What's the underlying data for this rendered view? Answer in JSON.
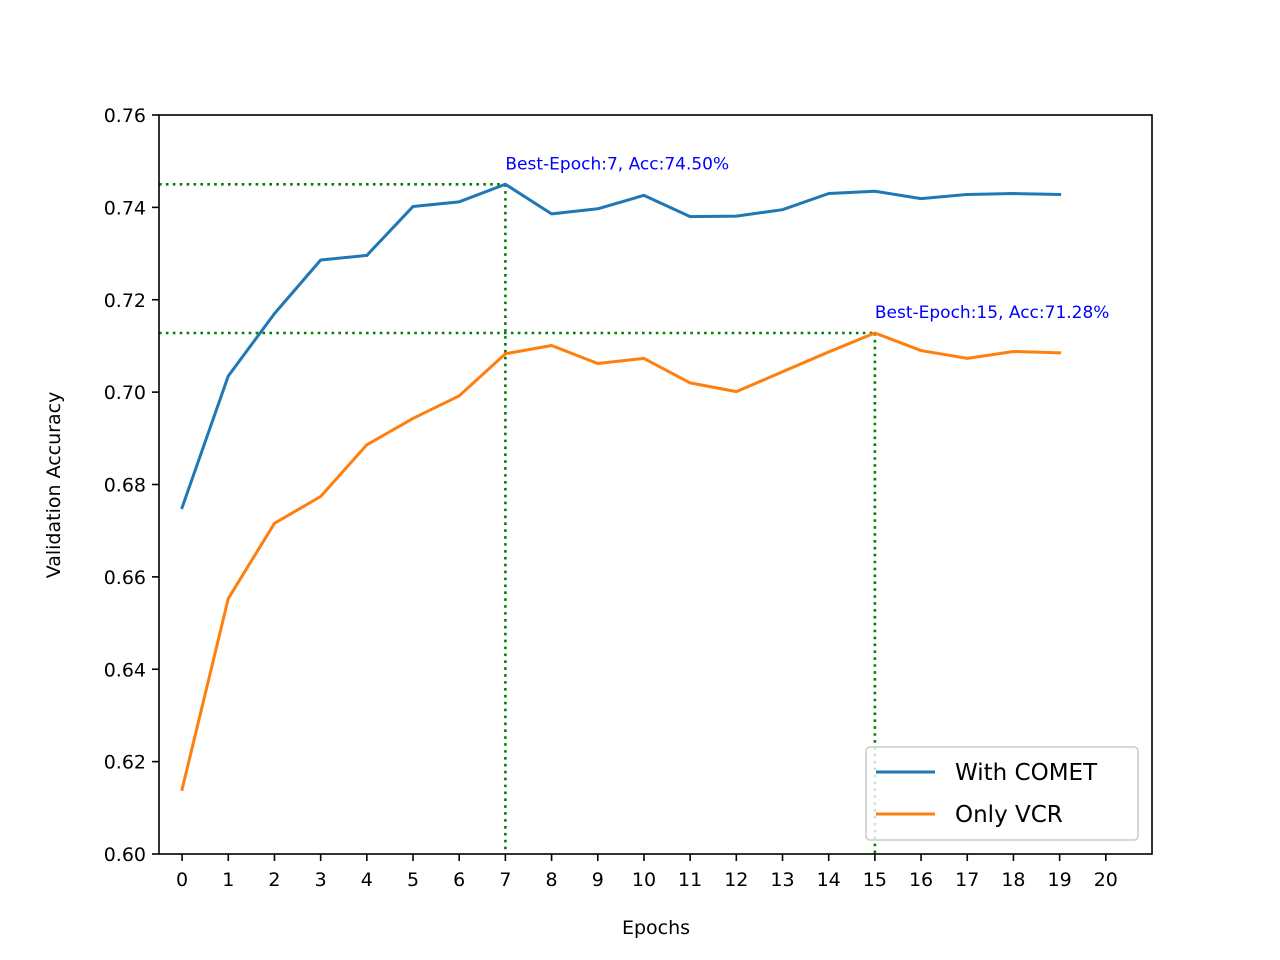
{
  "chart_data": {
    "type": "line",
    "xlabel": "Epochs",
    "ylabel": "Validation Accuracy",
    "xlim": [
      -0.5,
      21
    ],
    "ylim": [
      0.6,
      0.76
    ],
    "xticks": [
      0,
      1,
      2,
      3,
      4,
      5,
      6,
      7,
      8,
      9,
      10,
      11,
      12,
      13,
      14,
      15,
      16,
      17,
      18,
      19,
      20
    ],
    "yticks": [
      0.6,
      0.62,
      0.64,
      0.66,
      0.68,
      0.7,
      0.72,
      0.74,
      0.76
    ],
    "ytick_labels": [
      "0.60",
      "0.62",
      "0.64",
      "0.66",
      "0.68",
      "0.70",
      "0.72",
      "0.74",
      "0.76"
    ],
    "grid": false,
    "legend_position": "bottom-right",
    "x": [
      0,
      1,
      2,
      3,
      4,
      5,
      6,
      7,
      8,
      9,
      10,
      11,
      12,
      13,
      14,
      15,
      16,
      17,
      18,
      19
    ],
    "series": [
      {
        "name": "With COMET",
        "color": "#1f77b4",
        "values": [
          0.675,
          0.7035,
          0.717,
          0.7286,
          0.7296,
          0.7402,
          0.7412,
          0.745,
          0.7386,
          0.7397,
          0.7426,
          0.738,
          0.7381,
          0.7395,
          0.743,
          0.7435,
          0.7419,
          0.7428,
          0.743,
          0.7428
        ]
      },
      {
        "name": "Only VCR",
        "color": "#ff7f0e",
        "values": [
          0.614,
          0.6553,
          0.6716,
          0.6774,
          0.6886,
          0.6943,
          0.6992,
          0.7083,
          0.7101,
          0.7062,
          0.7073,
          0.702,
          0.7001,
          0.7044,
          0.7087,
          0.7128,
          0.709,
          0.7073,
          0.7088,
          0.7085
        ]
      }
    ],
    "annotations": [
      {
        "text": "Best-Epoch:7, Acc:74.50%",
        "x": 7,
        "y": 0.745,
        "color": "#0000ff"
      },
      {
        "text": "Best-Epoch:15, Acc:71.28%",
        "x": 15,
        "y": 0.7128,
        "color": "#0000ff"
      }
    ],
    "reference_line_color": "#008000"
  }
}
